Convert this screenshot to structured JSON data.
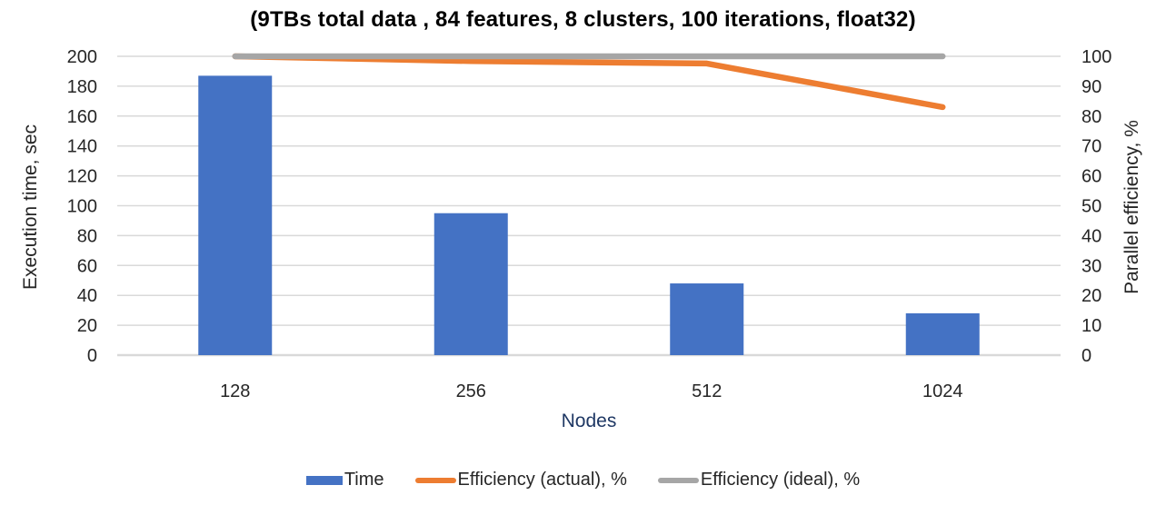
{
  "title": "(9TBs total data , 84 features, 8 clusters, 100 iterations, float32)",
  "chart_data": {
    "type": "combo",
    "categories": [
      "128",
      "256",
      "512",
      "1024"
    ],
    "xlabel": "Nodes",
    "xlabel_color": "#1F3864",
    "grid_color": "#D9D9D9",
    "legend_position": "bottom",
    "left_axis": {
      "label": "Execution time, sec",
      "min": 0,
      "max": 200,
      "step": 20
    },
    "right_axis": {
      "label": "Parallel efficiency, %",
      "min": 0,
      "max": 100,
      "step": 10
    },
    "series": [
      {
        "name": "Time",
        "type": "bar",
        "axis": "left",
        "color": "#4472C4",
        "values": [
          187,
          95,
          48,
          28
        ]
      },
      {
        "name": "Efficiency (actual), %",
        "type": "line",
        "axis": "right",
        "color": "#ED7D31",
        "values": [
          100,
          98.4,
          97.6,
          83
        ]
      },
      {
        "name": "Efficiency (ideal), %",
        "type": "line",
        "axis": "right",
        "color": "#A6A6A6",
        "values": [
          100,
          100,
          100,
          100
        ]
      }
    ]
  }
}
